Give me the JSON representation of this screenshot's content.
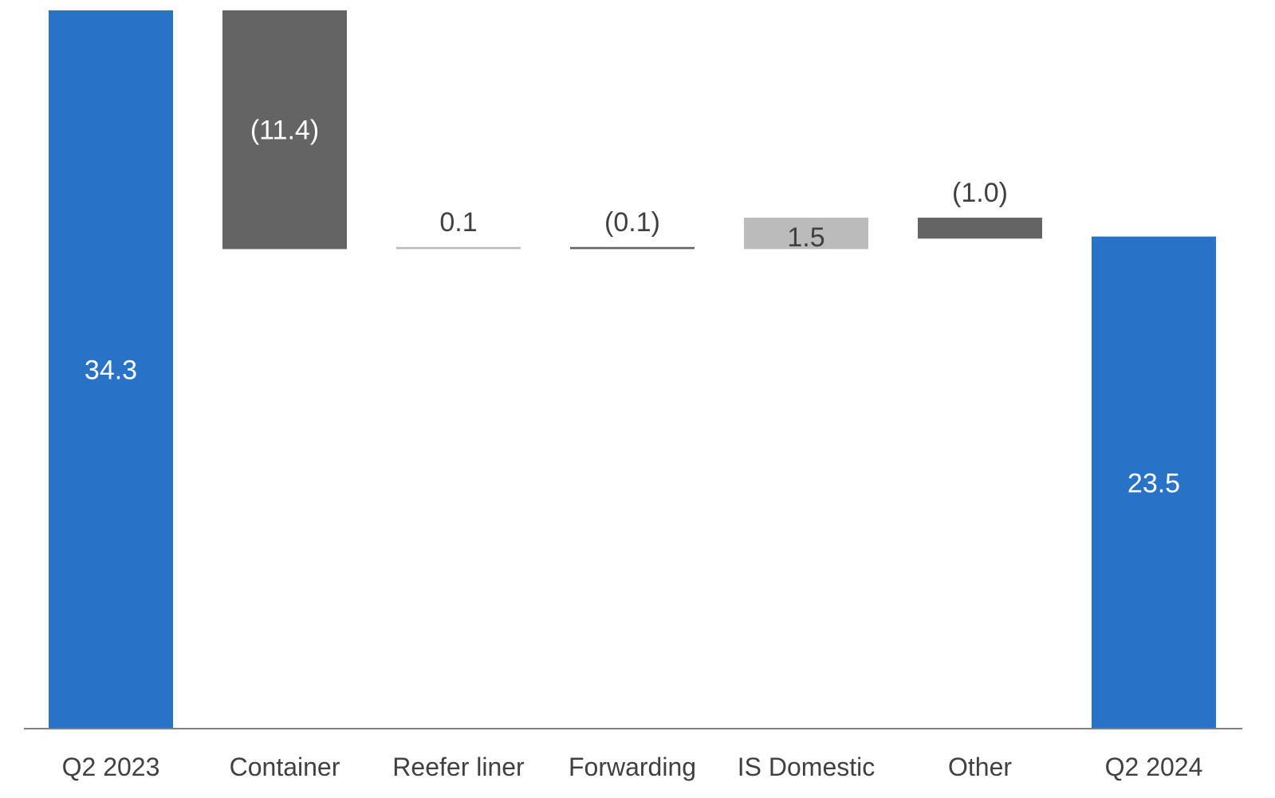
{
  "chart_data": {
    "type": "waterfall",
    "title": "",
    "xlabel": "",
    "ylabel": "",
    "ylim": [
      0,
      34.3
    ],
    "grid": false,
    "legend": "none",
    "categories": [
      "Q2 2023",
      "Container",
      "Reefer liner",
      "Forwarding",
      "IS Domestic",
      "Other",
      "Q2 2024"
    ],
    "steps": [
      {
        "category": "Q2 2023",
        "kind": "total",
        "value": 34.3,
        "label": "34.3",
        "color": "#2872C8"
      },
      {
        "category": "Container",
        "kind": "delta",
        "value": -11.4,
        "label": "(11.4)",
        "color": "#646464"
      },
      {
        "category": "Reefer liner",
        "kind": "delta",
        "value": 0.1,
        "label": "0.1",
        "color": "#BBBBBB"
      },
      {
        "category": "Forwarding",
        "kind": "delta",
        "value": -0.1,
        "label": "(0.1)",
        "color": "#646464"
      },
      {
        "category": "IS Domestic",
        "kind": "delta",
        "value": 1.5,
        "label": "1.5",
        "color": "#BBBBBB"
      },
      {
        "category": "Other",
        "kind": "delta",
        "value": -1.0,
        "label": "(1.0)",
        "color": "#646464"
      },
      {
        "category": "Q2 2024",
        "kind": "total",
        "value": 23.5,
        "label": "23.5",
        "color": "#2872C8"
      }
    ]
  }
}
